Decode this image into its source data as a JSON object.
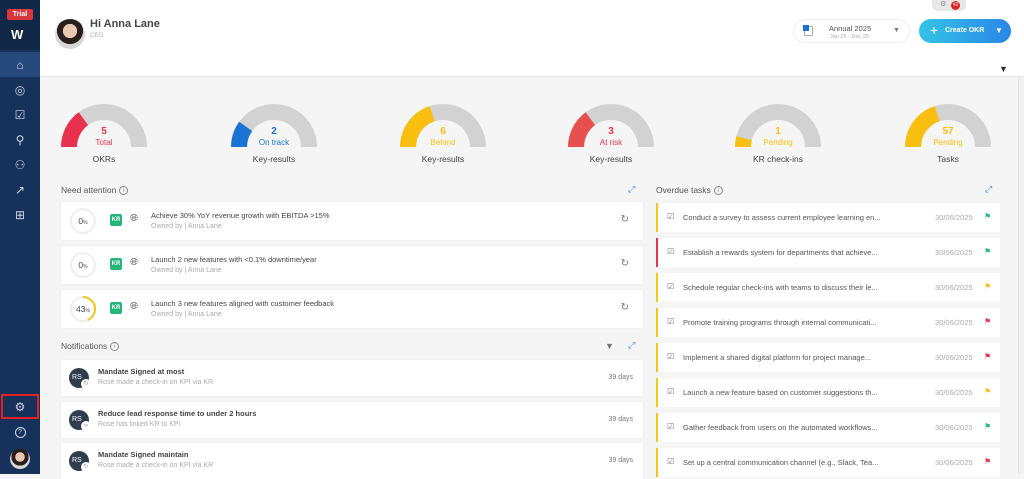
{
  "sidebar": {
    "trial_badge": "Trial",
    "logo": "W",
    "items": [
      {
        "name": "home",
        "icon": "⌂"
      },
      {
        "name": "objectives",
        "icon": "◎"
      },
      {
        "name": "tasks",
        "icon": "☑"
      },
      {
        "name": "performance",
        "icon": "⚲"
      },
      {
        "name": "teams",
        "icon": "⚇"
      },
      {
        "name": "reports",
        "icon": "↗"
      },
      {
        "name": "apps",
        "icon": "⊞"
      }
    ],
    "settings_icon": "⚙",
    "help_icon": "?"
  },
  "header": {
    "greeting": "Hi Anna Lane",
    "role": "CEO",
    "period": {
      "title": "Annual 2025",
      "range": "Jan 25 - Dec 25"
    },
    "create_button": "Create OKR",
    "notification_count": "42"
  },
  "gauges": [
    {
      "value": "5",
      "status": "Total",
      "label": "OKRs",
      "fill": 0.3,
      "color": "#e8304f"
    },
    {
      "value": "2",
      "status": "On track",
      "label": "Key-results",
      "fill": 0.2,
      "color": "#1a73d4"
    },
    {
      "value": "6",
      "status": "Behind",
      "label": "Key-results",
      "fill": 0.4,
      "color": "#f8bf10"
    },
    {
      "value": "3",
      "status": "At risk",
      "label": "Key-results",
      "fill": 0.3,
      "color": "#e85050",
      "text_color": "#e8304f"
    },
    {
      "value": "1",
      "status": "Pending",
      "label": "KR check-ins",
      "fill": 0.08,
      "color": "#f8bf10"
    },
    {
      "value": "57",
      "status": "Pending",
      "label": "Tasks",
      "fill": 0.4,
      "color": "#f8bf10"
    }
  ],
  "need_attention": {
    "title": "Need attention",
    "items": [
      {
        "progress": "0",
        "title": "Achieve 30% YoY revenue growth with EBITDA >15%",
        "owner": "Owned by | Anna Lane",
        "type": "KR"
      },
      {
        "progress": "0",
        "title": "Launch 2 new features with <0.1% downtime/year",
        "owner": "Owned by | Anna Lane",
        "type": "KR"
      },
      {
        "progress": "43",
        "title": "Launch 3 new features aligned with customer feedback",
        "owner": "Owned by | Anna Lane",
        "type": "KR"
      }
    ]
  },
  "notifications": {
    "title": "Notifications",
    "items": [
      {
        "initials": "RS",
        "title": "Mandate Signed at most",
        "desc": "Rose made a check-in on KPI via KR",
        "age": "39 days"
      },
      {
        "initials": "RS",
        "title": "Reduce lead response time to under 2 hours",
        "desc": "Rose has linked KR to KPI",
        "age": "39 days"
      },
      {
        "initials": "RS",
        "title": "Mandate Signed maintain",
        "desc": "Rose made a check-in on KPI via KR",
        "age": "39 days"
      }
    ]
  },
  "overdue": {
    "title": "Overdue tasks",
    "items": [
      {
        "title": "Conduct a survey to assess current employee learning en...",
        "date": "30/06/2025",
        "flag": "#23b779",
        "bar": "#f5c518"
      },
      {
        "title": "Establish a rewards system for departments that achieve...",
        "date": "30/06/2025",
        "flag": "#23b779",
        "bar": "#e8304f"
      },
      {
        "title": "Schedule regular check-ins with teams to discuss their le...",
        "date": "30/06/2025",
        "flag": "#f8bf10",
        "bar": "#f5c518"
      },
      {
        "title": "Promote training programs through internal communicati...",
        "date": "30/06/2025",
        "flag": "#e8304f",
        "bar": "#f5c518"
      },
      {
        "title": "Implement a shared digital platform for project manage...",
        "date": "30/06/2025",
        "flag": "#e8304f",
        "bar": "#f5c518"
      },
      {
        "title": "Launch a new feature based on customer suggestions th...",
        "date": "30/06/2025",
        "flag": "#f8bf10",
        "bar": "#f5c518"
      },
      {
        "title": "Gather feedback from users on the automated workflows...",
        "date": "30/06/2025",
        "flag": "#23b779",
        "bar": "#f5c518"
      },
      {
        "title": "Set up a central communication channel (e.g., Slack, Tea...",
        "date": "30/06/2025",
        "flag": "#e8304f",
        "bar": "#f5c518"
      }
    ]
  }
}
